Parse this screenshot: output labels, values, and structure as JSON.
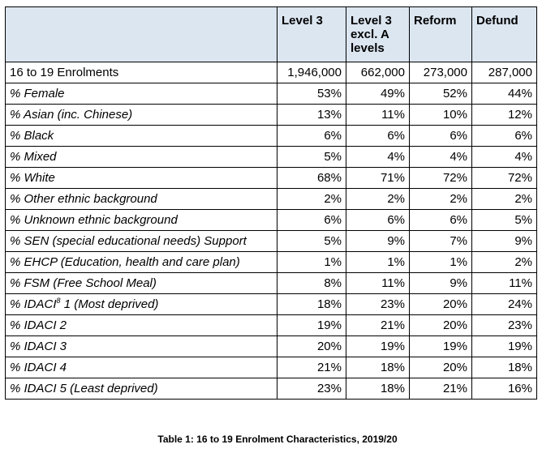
{
  "table": {
    "headers": [
      "",
      "Level 3",
      "Level 3 excl. A levels",
      "Reform",
      "Defund"
    ],
    "rows": [
      {
        "label": "16 to 19 Enrolments",
        "italic": false,
        "values": [
          "1,946,000",
          "662,000",
          "273,000",
          "287,000"
        ]
      },
      {
        "label": "% Female",
        "italic": true,
        "values": [
          "53%",
          "49%",
          "52%",
          "44%"
        ]
      },
      {
        "label": "% Asian (inc. Chinese)",
        "italic": true,
        "values": [
          "13%",
          "11%",
          "10%",
          "12%"
        ]
      },
      {
        "label": "% Black",
        "italic": true,
        "values": [
          "6%",
          "6%",
          "6%",
          "6%"
        ]
      },
      {
        "label": "% Mixed",
        "italic": true,
        "values": [
          "5%",
          "4%",
          "4%",
          "4%"
        ]
      },
      {
        "label": "% White",
        "italic": true,
        "values": [
          "68%",
          "71%",
          "72%",
          "72%"
        ]
      },
      {
        "label": "% Other ethnic background",
        "italic": true,
        "values": [
          "2%",
          "2%",
          "2%",
          "2%"
        ]
      },
      {
        "label": "% Unknown ethnic background",
        "italic": true,
        "values": [
          "6%",
          "6%",
          "6%",
          "5%"
        ]
      },
      {
        "label": "% SEN (special educational needs) Support",
        "italic": true,
        "values": [
          "5%",
          "9%",
          "7%",
          "9%"
        ]
      },
      {
        "label": "% EHCP (Education, health and care plan)",
        "italic": true,
        "values": [
          "1%",
          "1%",
          "1%",
          "2%"
        ]
      },
      {
        "label": "% FSM (Free School Meal)",
        "italic": true,
        "values": [
          "8%",
          "11%",
          "9%",
          "11%"
        ]
      },
      {
        "label": "% IDACI",
        "sup": "8",
        "suffix": " 1 (Most deprived)",
        "italic": true,
        "values": [
          "18%",
          "23%",
          "20%",
          "24%"
        ]
      },
      {
        "label": "% IDACI 2",
        "italic": true,
        "values": [
          "19%",
          "21%",
          "20%",
          "23%"
        ]
      },
      {
        "label": "% IDACI 3",
        "italic": true,
        "values": [
          "20%",
          "19%",
          "19%",
          "19%"
        ]
      },
      {
        "label": "% IDACI 4",
        "italic": true,
        "values": [
          "21%",
          "18%",
          "20%",
          "18%"
        ]
      },
      {
        "label": "% IDACI 5 (Least deprived)",
        "italic": true,
        "values": [
          "23%",
          "18%",
          "21%",
          "16%"
        ]
      }
    ]
  },
  "caption": "Table 1: 16 to 19 Enrolment Characteristics, 2019/20",
  "colors": {
    "header_bg": "#dce6f1",
    "border": "#000000"
  }
}
